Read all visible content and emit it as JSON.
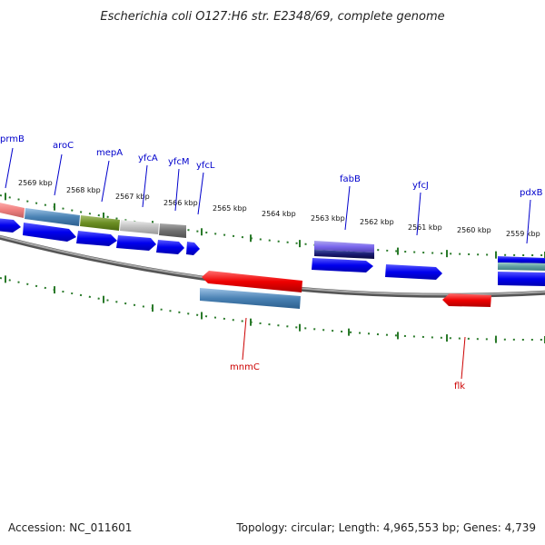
{
  "title": "Escherichia coli O127:H6 str. E2348/69, complete genome",
  "footer": {
    "accession": "Accession: NC_011601",
    "topology": "Topology: circular; Length: 4,965,553 bp; Genes: 4,739"
  },
  "colors": {
    "backbone": "#888888",
    "tick": "#2a7a2a",
    "forward_label": "#0000cc",
    "reverse_label": "#cc0000",
    "cds": "#0000ee",
    "rna_reverse": "#ee0000"
  },
  "scale_labels": [
    "2569 kbp",
    "2568 kbp",
    "2567 kbp",
    "2566 kbp",
    "2565 kbp",
    "2564 kbp",
    "2563 kbp",
    "2562 kbp",
    "2561 kbp",
    "2560 kbp",
    "2559 kbp"
  ],
  "forward_gene_labels": [
    "prmB",
    "aroC",
    "mepA",
    "yfcA",
    "yfcM",
    "yfcL",
    "fabB",
    "yfcJ",
    "pdxB"
  ],
  "reverse_gene_labels": [
    "mnmC",
    "flk"
  ]
}
